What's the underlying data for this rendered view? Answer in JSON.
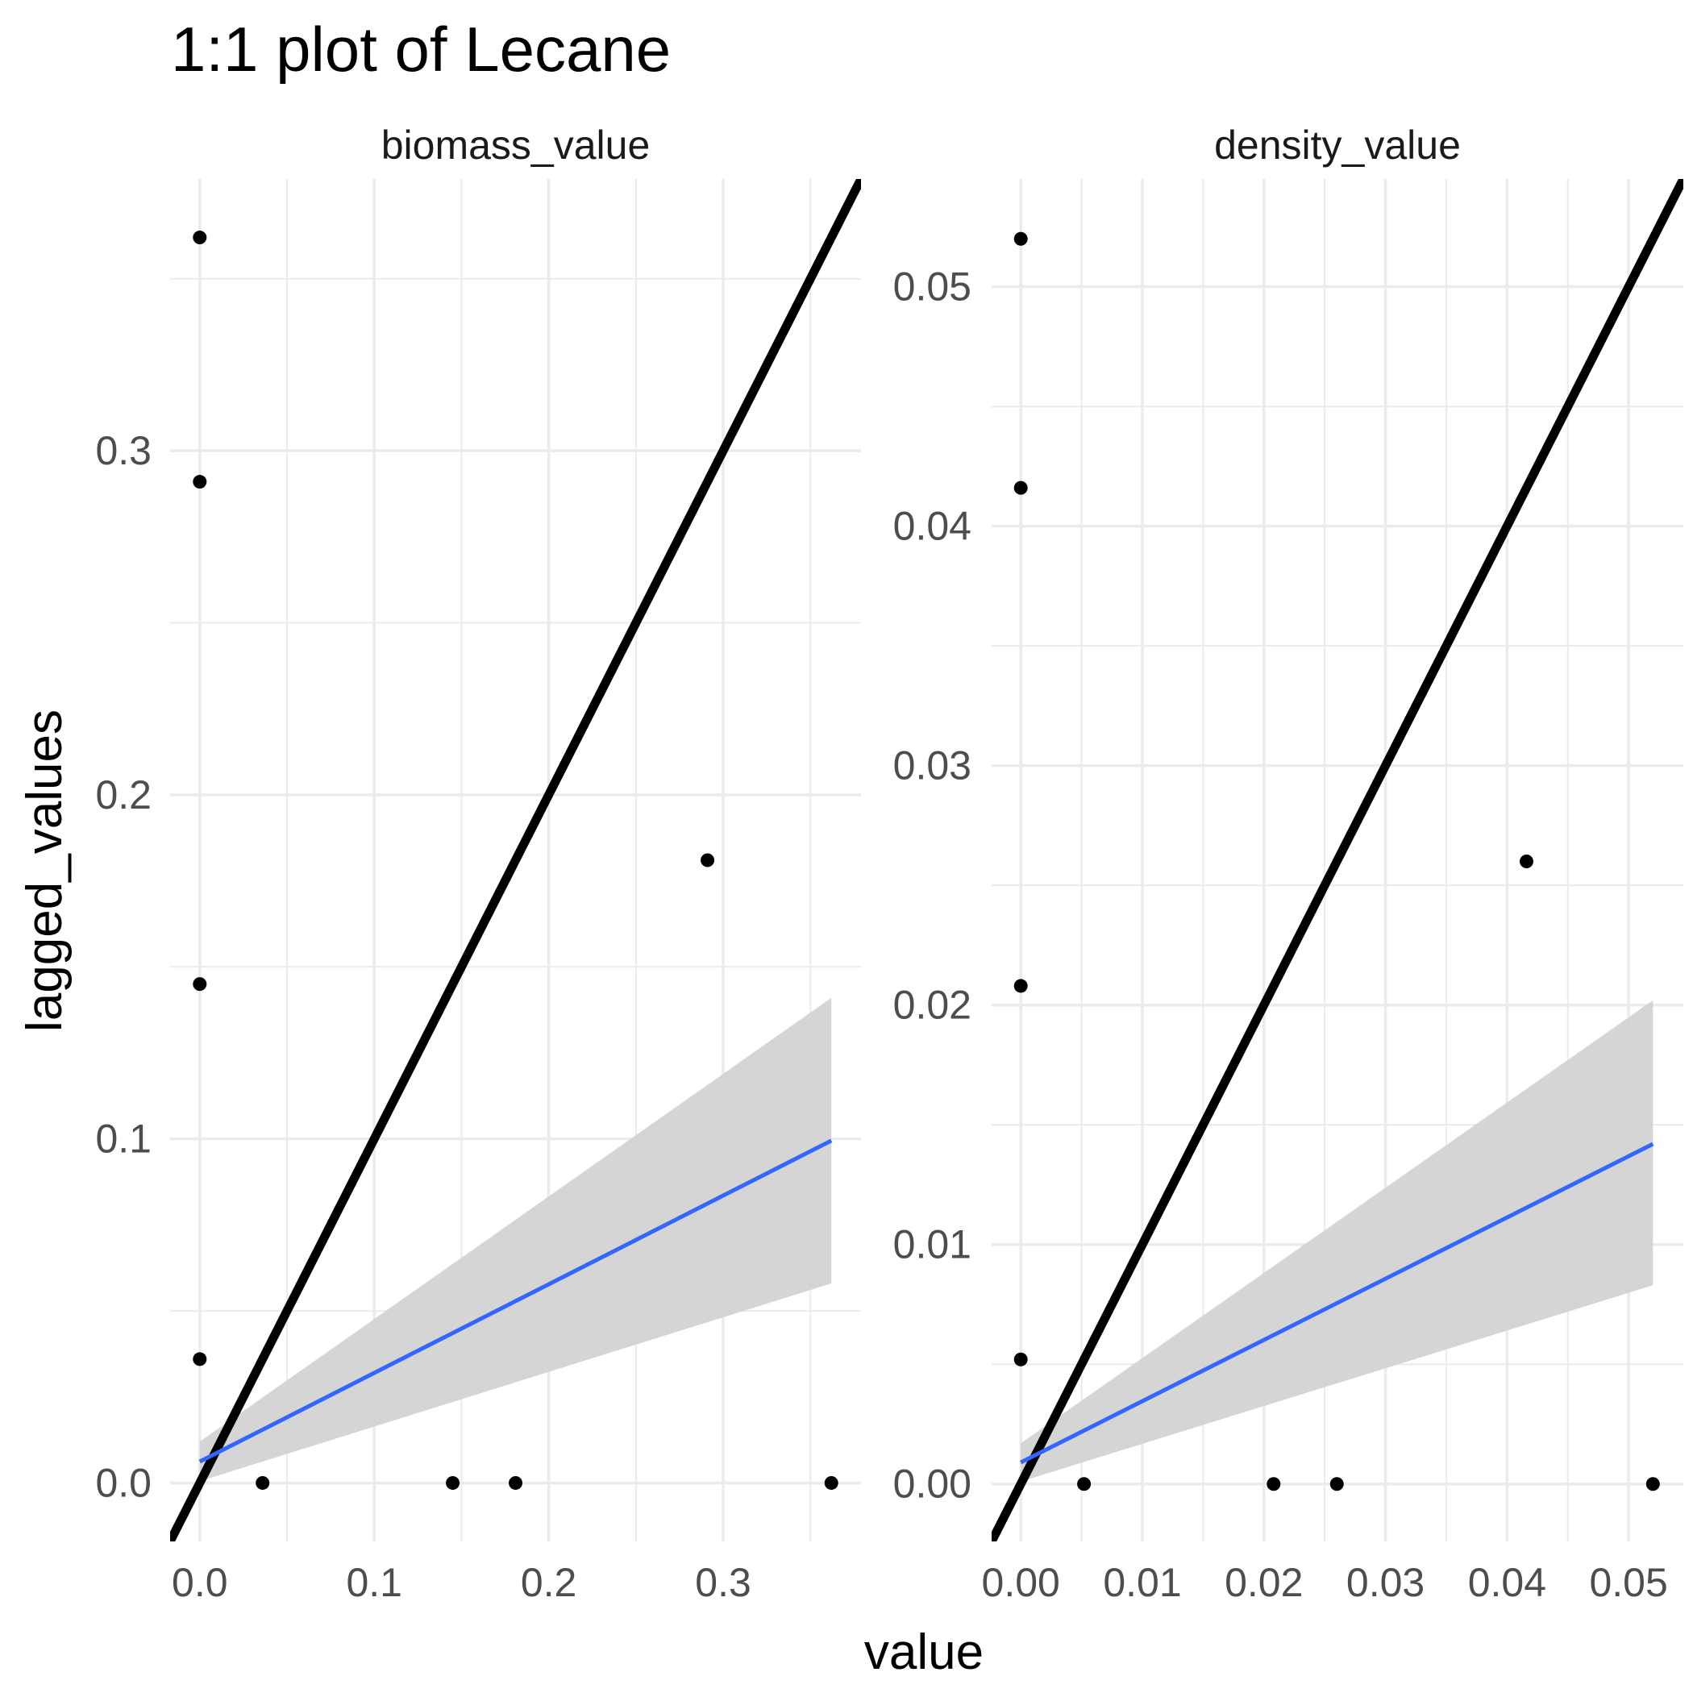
{
  "chart_data": {
    "type": "scatter",
    "title": "1:1 plot of Lecane",
    "xlabel": "value",
    "ylabel": "lagged_values",
    "grid": true,
    "legend": "none",
    "colors": {
      "points": "#000000",
      "identity_line": "#000000",
      "fit_line": "#3366ff",
      "ribbon": "#d3d3d3",
      "grid": "#ebebeb"
    },
    "panels": [
      {
        "strip_label": "biomass_value",
        "xlim": [
          -0.017,
          0.379
        ],
        "ylim": [
          -0.017,
          0.379
        ],
        "x_ticks": [
          "0.0",
          "0.1",
          "0.2",
          "0.3"
        ],
        "x_tick_values": [
          0.0,
          0.1,
          0.2,
          0.3
        ],
        "y_ticks": [
          "0.0",
          "0.1",
          "0.2",
          "0.3"
        ],
        "y_tick_values": [
          0.0,
          0.1,
          0.2,
          0.3
        ],
        "points": {
          "x": [
            0.0,
            0.0,
            0.0,
            0.0,
            0.036,
            0.145,
            0.181,
            0.291,
            0.362
          ],
          "y": [
            0.362,
            0.291,
            0.145,
            0.036,
            0.0,
            0.0,
            0.0,
            0.181,
            0.0
          ]
        },
        "identity_line": {
          "slope": 1,
          "intercept": 0
        },
        "fit": {
          "x": [
            0.0,
            0.362
          ],
          "y": [
            0.0062,
            0.0995
          ],
          "ribbon_lower": [
            0.0005,
            0.058
          ],
          "ribbon_upper": [
            0.012,
            0.141
          ]
        }
      },
      {
        "strip_label": "density_value",
        "xlim": [
          -0.0024,
          0.0545
        ],
        "ylim": [
          -0.0024,
          0.0545
        ],
        "x_ticks": [
          "0.00",
          "0.01",
          "0.02",
          "0.03",
          "0.04",
          "0.05"
        ],
        "x_tick_values": [
          0.0,
          0.01,
          0.02,
          0.03,
          0.04,
          0.05
        ],
        "y_ticks": [
          "0.00",
          "0.01",
          "0.02",
          "0.03",
          "0.04",
          "0.05"
        ],
        "y_tick_values": [
          0.0,
          0.01,
          0.02,
          0.03,
          0.04,
          0.05
        ],
        "points": {
          "x": [
            0.0,
            0.0,
            0.0,
            0.0,
            0.0052,
            0.0208,
            0.026,
            0.0416,
            0.052
          ],
          "y": [
            0.052,
            0.0416,
            0.0208,
            0.0052,
            0.0,
            0.0,
            0.0,
            0.026,
            0.0
          ]
        },
        "identity_line": {
          "slope": 1,
          "intercept": 0
        },
        "fit": {
          "x": [
            0.0,
            0.052
          ],
          "y": [
            0.0009,
            0.0142
          ],
          "ribbon_lower": [
            0.0001,
            0.0083
          ],
          "ribbon_upper": [
            0.0017,
            0.0202
          ]
        }
      }
    ]
  }
}
